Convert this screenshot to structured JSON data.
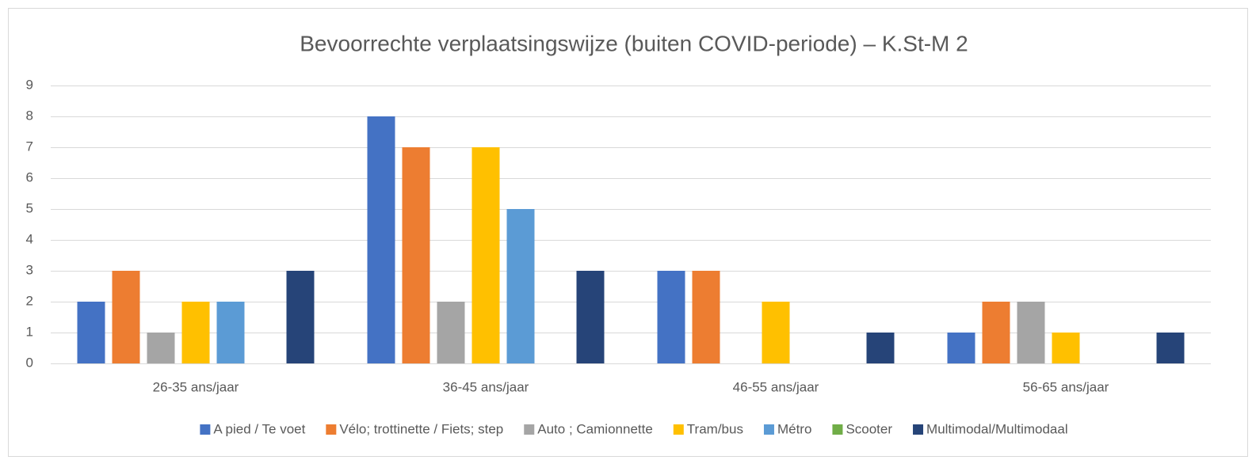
{
  "chart_data": {
    "type": "bar",
    "title": "Bevoorrechte verplaatsingswijze (buiten COVID-periode) – K.St-M 2",
    "categories": [
      "26-35 ans/jaar",
      "36-45 ans/jaar",
      "46-55 ans/jaar",
      "56-65 ans/jaar"
    ],
    "series": [
      {
        "name": "A pied / Te voet",
        "color": "#4472c4",
        "values": [
          2,
          8,
          3,
          1
        ]
      },
      {
        "name": "Vélo; trottinette / Fiets; step",
        "color": "#ed7d31",
        "values": [
          3,
          7,
          3,
          2
        ]
      },
      {
        "name": "Auto ; Camionnette",
        "color": "#a5a5a5",
        "values": [
          1,
          2,
          0,
          2
        ]
      },
      {
        "name": "Tram/bus",
        "color": "#ffc000",
        "values": [
          2,
          7,
          2,
          1
        ]
      },
      {
        "name": "Métro",
        "color": "#5b9bd5",
        "values": [
          2,
          5,
          0,
          0
        ]
      },
      {
        "name": "Scooter",
        "color": "#70ad47",
        "values": [
          0,
          0,
          0,
          0
        ]
      },
      {
        "name": "Multimodal/Multimodaal",
        "color": "#264478",
        "values": [
          3,
          3,
          1,
          1
        ]
      }
    ],
    "ylim": [
      0,
      9
    ],
    "yticks": [
      0,
      1,
      2,
      3,
      4,
      5,
      6,
      7,
      8,
      9
    ],
    "grid": true,
    "legend": "bottom"
  }
}
